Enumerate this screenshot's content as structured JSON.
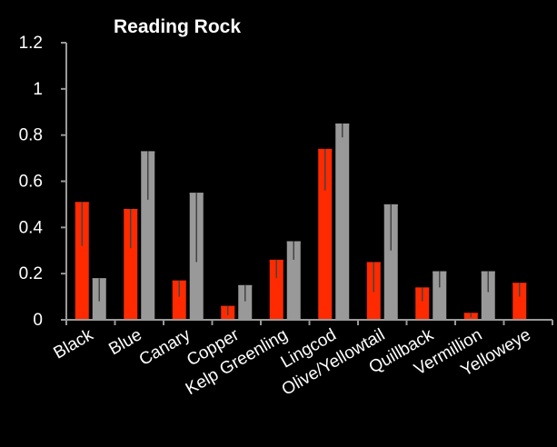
{
  "chart_data": {
    "type": "bar",
    "title": "Reading Rock",
    "xlabel": "",
    "ylabel": "",
    "ylim": [
      0,
      1.2
    ],
    "yticks": [
      0,
      0.2,
      0.4,
      0.6,
      0.8,
      1,
      1.2
    ],
    "ytick_labels": [
      "0",
      "0.2",
      "0.4",
      "0.6",
      "0.8",
      "1",
      "1.2"
    ],
    "grid": false,
    "categories": [
      "Black",
      "Blue",
      "Canary",
      "Copper",
      "Kelp Greenling",
      "Lingcod",
      "Olive/Yellowtail",
      "Quillback",
      "Vermillion",
      "Yelloweye"
    ],
    "series": [
      {
        "color": "#ff2a00",
        "values": [
          0.51,
          0.48,
          0.17,
          0.06,
          0.26,
          0.74,
          0.25,
          0.14,
          0.03,
          0.16
        ],
        "error_low": [
          0.32,
          0.31,
          0.1,
          0.02,
          0.18,
          0.56,
          0.12,
          0.08,
          0.01,
          0.1
        ]
      },
      {
        "color": "#999999",
        "values": [
          0.18,
          0.73,
          0.55,
          0.15,
          0.34,
          0.85,
          0.5,
          0.21,
          0.21,
          null
        ],
        "error_low": [
          0.08,
          0.52,
          0.25,
          0.08,
          0.26,
          0.79,
          0.3,
          0.14,
          0.12,
          null
        ]
      }
    ],
    "colors": {
      "background": "#000000",
      "axis": "#999999",
      "text": "#ffffff",
      "errorbar": "#444444"
    }
  }
}
